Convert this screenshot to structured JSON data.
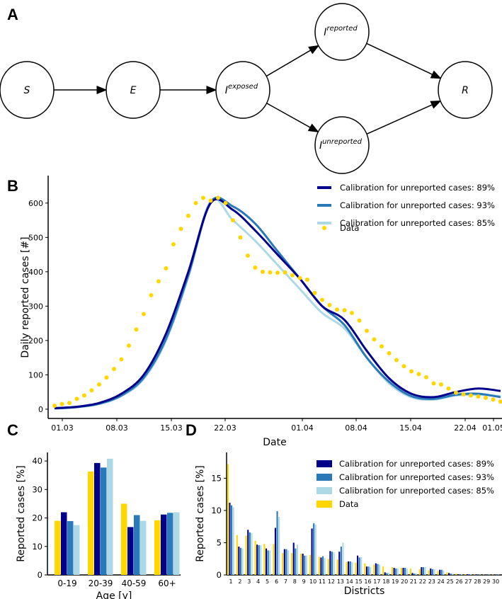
{
  "colors": {
    "cal89": "#00008b",
    "cal93": "#2a7ab9",
    "cal85": "#add8e6",
    "data": "#ffd700"
  },
  "panel_labels": [
    "A",
    "B",
    "C",
    "D"
  ],
  "diagram": {
    "nodes": [
      {
        "id": "S",
        "label": "S",
        "sup": ""
      },
      {
        "id": "E",
        "label": "E",
        "sup": ""
      },
      {
        "id": "Iexp",
        "label": "I",
        "sup": "exposed"
      },
      {
        "id": "Irep",
        "label": "I",
        "sup": "reported"
      },
      {
        "id": "Iunrep",
        "label": "I",
        "sup": "unreported"
      },
      {
        "id": "R",
        "label": "R",
        "sup": ""
      }
    ],
    "edges": [
      [
        "S",
        "E"
      ],
      [
        "E",
        "Iexp"
      ],
      [
        "Iexp",
        "Irep"
      ],
      [
        "Iexp",
        "Iunrep"
      ],
      [
        "Irep",
        "R"
      ],
      [
        "Iunrep",
        "R"
      ]
    ]
  },
  "chart_data": [
    {
      "type": "line",
      "panel": "B",
      "xlabel": "Date",
      "ylabel": "Daily reported cases [#]",
      "xticks": [
        "01.03",
        "08.03",
        "15.03",
        "22.03",
        "01.04",
        "08.04",
        "15.04",
        "22.04",
        "01.05"
      ],
      "yticks": [
        0,
        100,
        200,
        300,
        400,
        500,
        600
      ],
      "ylim": [
        -27,
        680
      ],
      "grid": false,
      "legend": "top-right",
      "series": [
        {
          "name": "Calibration for unreported cases: 89%",
          "color_key": "cal89",
          "values": [
            3,
            7,
            18,
            45,
            100,
            220,
            400,
            600,
            580,
            520,
            450,
            380,
            300,
            260,
            170,
            90,
            45,
            35,
            50,
            60,
            53
          ]
        },
        {
          "name": "Calibration for unreported cases: 93%",
          "color_key": "cal93",
          "values": [
            2,
            6,
            16,
            40,
            92,
            205,
            390,
            602,
            590,
            540,
            460,
            380,
            300,
            245,
            150,
            80,
            38,
            30,
            42,
            45,
            35
          ]
        },
        {
          "name": "Calibration for unreported cases: 85%",
          "color_key": "cal85",
          "values": [
            2,
            6,
            15,
            38,
            88,
            200,
            385,
            606,
            550,
            490,
            420,
            350,
            280,
            235,
            150,
            75,
            35,
            28,
            40,
            42,
            38
          ]
        }
      ],
      "data_points": {
        "name": "Data",
        "color_key": "data",
        "values": [
          10,
          15,
          18,
          30,
          40,
          55,
          72,
          92,
          117,
          145,
          185,
          232,
          277,
          332,
          372,
          410,
          480,
          525,
          563,
          600,
          615,
          607,
          615,
          600,
          550,
          500,
          447,
          412,
          400,
          398,
          397,
          398,
          390,
          382,
          377,
          338,
          318,
          303,
          290,
          288,
          280,
          258,
          228,
          203,
          183,
          163,
          143,
          125,
          110,
          102,
          93,
          75,
          72,
          60,
          48,
          43,
          40,
          37,
          33,
          28,
          22
        ]
      }
    },
    {
      "type": "bar",
      "panel": "C",
      "xlabel": "Age [y]",
      "ylabel": "Reported cases [%]",
      "categories": [
        "0-19",
        "20-39",
        "40-59",
        "60+"
      ],
      "yticks": [
        0,
        10,
        20,
        30,
        40
      ],
      "ylim": [
        0,
        43
      ],
      "series": [
        {
          "name": "Data",
          "color_key": "data",
          "values": [
            19.0,
            36.3,
            25.0,
            19.2
          ]
        },
        {
          "name": "Calibration for unreported cases: 89%",
          "color_key": "cal89",
          "values": [
            22.0,
            39.3,
            16.8,
            21.2
          ]
        },
        {
          "name": "Calibration for unreported cases: 93%",
          "color_key": "cal93",
          "values": [
            18.9,
            37.7,
            21.0,
            21.8
          ]
        },
        {
          "name": "Calibration for unreported cases: 85%",
          "color_key": "cal85",
          "values": [
            17.5,
            40.8,
            19.0,
            22.0
          ]
        }
      ]
    },
    {
      "type": "bar",
      "panel": "D",
      "xlabel": "Districts",
      "ylabel": "Reported cases [%]",
      "categories": [
        "1",
        "2",
        "3",
        "4",
        "5",
        "6",
        "7",
        "8",
        "9",
        "10",
        "11",
        "12",
        "13",
        "14",
        "15",
        "16",
        "17",
        "18",
        "19",
        "20",
        "21",
        "22",
        "23",
        "24",
        "25",
        "26",
        "27",
        "28",
        "29",
        "30"
      ],
      "yticks": [
        0,
        5,
        10,
        15
      ],
      "ylim": [
        0,
        19
      ],
      "legend": "top-right",
      "series": [
        {
          "name": "Data",
          "color_key": "data",
          "values": [
            17.2,
            6.2,
            6.1,
            5.3,
            4.8,
            4.8,
            3.4,
            3.4,
            3.3,
            3.1,
            2.8,
            2.5,
            2.4,
            2.0,
            1.9,
            1.8,
            1.6,
            1.3,
            1.2,
            1.1,
            1.0,
            0.9,
            0.7,
            0.6,
            0.4,
            0.2,
            0.1,
            0.05,
            0.05,
            0.05
          ]
        },
        {
          "name": "Calibration for unreported cases: 89%",
          "color_key": "cal89",
          "values": [
            11.2,
            4.4,
            7.0,
            4.7,
            4.1,
            7.3,
            4.0,
            5.0,
            3.3,
            7.2,
            2.7,
            3.7,
            3.6,
            2.1,
            3.0,
            1.3,
            1.8,
            0.4,
            1.1,
            1.1,
            0.3,
            1.2,
            1.0,
            0.8,
            0.3,
            0.1,
            0.1,
            0.05,
            0.05,
            0.05
          ]
        },
        {
          "name": "Calibration for unreported cases: 93%",
          "color_key": "cal93",
          "values": [
            10.8,
            4.2,
            6.6,
            4.6,
            3.8,
            9.9,
            4.0,
            4.1,
            3.0,
            8.0,
            2.9,
            3.6,
            4.4,
            2.1,
            2.7,
            1.3,
            1.7,
            0.3,
            1.0,
            1.1,
            0.2,
            1.2,
            0.9,
            0.8,
            0.2,
            0.1,
            0.1,
            0.05,
            0.05,
            0.05
          ]
        },
        {
          "name": "Calibration for unreported cases: 85%",
          "color_key": "cal85",
          "values": [
            10.5,
            4.1,
            6.5,
            4.6,
            3.8,
            9.0,
            3.8,
            4.7,
            3.0,
            7.8,
            2.6,
            3.5,
            5.0,
            2.0,
            2.8,
            1.2,
            1.6,
            0.3,
            1.0,
            1.0,
            0.2,
            1.2,
            0.9,
            0.7,
            0.2,
            0.1,
            0.1,
            0.05,
            0.05,
            0.05
          ]
        }
      ]
    }
  ]
}
